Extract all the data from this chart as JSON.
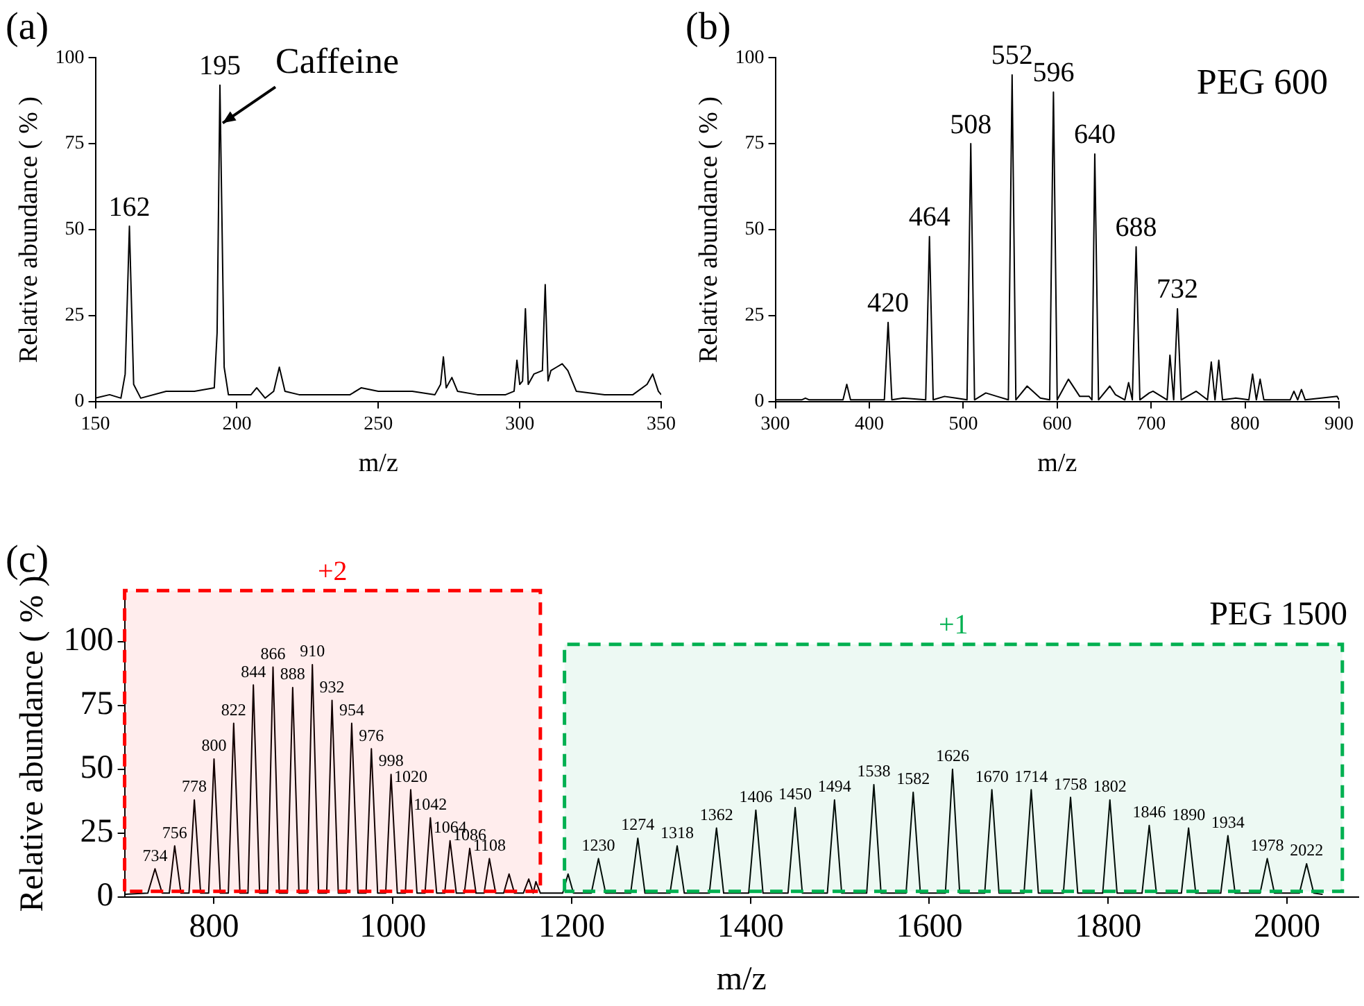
{
  "chart_data": [
    {
      "type": "line",
      "title": "(a)",
      "xlabel": "m/z",
      "ylabel": "Relative abundance ( % )",
      "color": "#000000",
      "x": [
        150,
        155,
        159,
        160.5,
        162,
        163.5,
        166,
        175,
        185,
        192,
        193,
        194,
        195.5,
        197,
        205,
        207,
        210,
        213,
        215,
        217,
        222,
        240,
        244,
        250,
        262,
        270,
        272,
        273,
        274,
        276,
        278,
        285,
        295,
        298,
        299,
        300,
        301,
        302,
        303,
        305,
        308,
        309,
        310,
        311,
        313,
        315,
        317,
        320,
        330,
        340,
        345,
        347,
        349,
        350
      ],
      "values": [
        1,
        2,
        1,
        8,
        51,
        5,
        1,
        3,
        3,
        4,
        20,
        92,
        10,
        2,
        2,
        4,
        1,
        3,
        10,
        3,
        2,
        2,
        4,
        3,
        3,
        2,
        5,
        13,
        4,
        7,
        3,
        2,
        2,
        3,
        12,
        5,
        6,
        27,
        5,
        8,
        9,
        34,
        6,
        9,
        10,
        11,
        9,
        3,
        2,
        2,
        5,
        8,
        3,
        2
      ],
      "xlim": [
        150,
        350
      ],
      "xticks": [
        150,
        200,
        250,
        300,
        350
      ],
      "ylim": [
        0,
        100
      ],
      "yticks": [
        0,
        25,
        50,
        75,
        100
      ],
      "annotations": [
        {
          "text": "162",
          "x": 162,
          "y": 51
        },
        {
          "text": "195",
          "x": 194,
          "y": 92
        },
        {
          "text": "Caffeine",
          "x": 194,
          "y": 81
        }
      ]
    },
    {
      "type": "line",
      "title": "(b)",
      "xlabel": "m/z",
      "ylabel": "Relative abundance ( % )",
      "color": "#000000",
      "x": [
        300,
        328,
        332,
        336,
        372,
        376,
        380,
        416,
        420,
        424,
        436,
        460,
        464,
        468,
        480,
        492,
        504,
        508,
        512,
        524,
        536,
        548,
        552,
        556,
        568,
        582,
        592,
        596,
        600,
        612,
        624,
        634,
        637,
        640,
        644,
        656,
        662,
        672,
        676,
        680,
        684,
        688,
        698,
        702,
        717,
        720,
        724,
        728,
        732,
        748,
        760,
        764,
        768,
        772,
        776,
        790,
        804,
        808,
        812,
        816,
        820,
        848,
        852,
        856,
        860,
        864,
        898,
        900
      ],
      "values": [
        0.5,
        0.5,
        1,
        0.5,
        0.5,
        5,
        0.5,
        0.5,
        23,
        0.5,
        1,
        0.5,
        48,
        0.5,
        1.5,
        1,
        0.5,
        75,
        0.5,
        2.5,
        1.5,
        0.5,
        95,
        0.5,
        4.5,
        1,
        0.5,
        90,
        0.5,
        6.5,
        1.5,
        1.5,
        0.5,
        72,
        0.5,
        4.5,
        2,
        0.5,
        5.5,
        0.5,
        45,
        0.5,
        2.5,
        3,
        0.5,
        13.5,
        0.5,
        27,
        0.5,
        3,
        0.5,
        11.5,
        0.5,
        12,
        0.5,
        1,
        0.5,
        8,
        0.5,
        6.5,
        0.5,
        0.5,
        3,
        0.5,
        3.5,
        0.5,
        1.5,
        0.5
      ],
      "xlim": [
        300,
        900
      ],
      "xticks": [
        300,
        400,
        500,
        600,
        700,
        800,
        900
      ],
      "ylim": [
        0,
        100
      ],
      "yticks": [
        0,
        25,
        50,
        75,
        100
      ],
      "annotations": [
        "PEG 600",
        {
          "text": "420",
          "x": 420,
          "y": 23
        },
        {
          "text": "464",
          "x": 464,
          "y": 48
        },
        {
          "text": "508",
          "x": 508,
          "y": 75
        },
        {
          "text": "552",
          "x": 552,
          "y": 95
        },
        {
          "text": "596",
          "x": 596,
          "y": 90
        },
        {
          "text": "640",
          "x": 640,
          "y": 72
        },
        {
          "text": "688",
          "x": 684,
          "y": 45
        },
        {
          "text": "732",
          "x": 728,
          "y": 27
        }
      ]
    },
    {
      "type": "line",
      "title": "(c)",
      "xlabel": "m/z",
      "ylabel": "Relative abundance ( % )",
      "color": "#000000",
      "x": [
        700,
        726,
        734,
        742,
        750,
        756,
        763,
        772,
        778,
        785,
        794,
        800,
        807,
        816,
        822,
        829,
        838,
        844,
        851,
        860,
        866,
        873,
        882,
        888,
        895,
        904,
        910,
        917,
        926,
        932,
        939,
        948,
        954,
        961,
        970,
        976,
        983,
        992,
        998,
        1005,
        1014,
        1020,
        1027,
        1036,
        1042,
        1049,
        1058,
        1064,
        1071,
        1080,
        1086,
        1093,
        1102,
        1108,
        1115,
        1124,
        1130,
        1136,
        1146,
        1152,
        1157,
        1160,
        1165,
        1190,
        1196,
        1202,
        1222,
        1230,
        1238,
        1266,
        1274,
        1282,
        1310,
        1318,
        1326,
        1354,
        1362,
        1370,
        1398,
        1406,
        1414,
        1442,
        1450,
        1458,
        1486,
        1494,
        1502,
        1530,
        1538,
        1546,
        1574,
        1582,
        1590,
        1618,
        1626,
        1634,
        1662,
        1670,
        1678,
        1706,
        1714,
        1722,
        1750,
        1758,
        1766,
        1794,
        1802,
        1810,
        1838,
        1846,
        1854,
        1882,
        1890,
        1898,
        1926,
        1934,
        1942,
        1970,
        1978,
        1986,
        2014,
        2022,
        2030,
        2040
      ],
      "values": [
        1,
        1.5,
        11,
        1.5,
        1.5,
        20,
        1.5,
        1.5,
        38,
        1.5,
        1.5,
        54,
        1.5,
        1.5,
        68,
        1.5,
        1.5,
        83,
        1.5,
        1.5,
        90,
        1.5,
        1.5,
        82,
        1.5,
        1.5,
        91,
        1.5,
        1.5,
        77,
        1.5,
        1.5,
        68,
        1.5,
        1.5,
        58,
        1.5,
        1.5,
        48,
        1.5,
        1.5,
        42,
        1.5,
        1.5,
        31,
        1.5,
        1.5,
        22,
        1.5,
        1.5,
        19,
        1.5,
        1.5,
        15,
        1.5,
        1.5,
        9,
        1.5,
        1.5,
        7,
        1.5,
        6,
        1.5,
        1.5,
        9,
        1.5,
        1.5,
        15,
        1.5,
        1.5,
        23,
        1.5,
        1.5,
        20,
        1.5,
        1.5,
        27,
        1.5,
        1.5,
        34,
        1.5,
        1.5,
        35,
        1.5,
        1.5,
        38,
        1.5,
        1.5,
        44,
        1.5,
        1.5,
        41,
        1.5,
        1.5,
        50,
        1.5,
        1.5,
        42,
        1.5,
        1.5,
        42,
        1.5,
        1.5,
        39,
        1.5,
        1.5,
        38,
        1.5,
        1.5,
        28,
        1.5,
        1.5,
        27,
        1.5,
        1.5,
        24,
        1.5,
        1.5,
        15,
        1.5,
        1.5,
        13,
        1.5,
        1
      ],
      "xlim": [
        700,
        2080
      ],
      "xticks": [
        800,
        1000,
        1200,
        1400,
        1600,
        1800,
        2000
      ],
      "ylim": [
        0,
        120
      ],
      "yticks": [
        0,
        25,
        50,
        75,
        100
      ],
      "bands": [
        {
          "axis": "x",
          "from": 700,
          "to": 1165,
          "label": "+2",
          "color": "#ff0000"
        },
        {
          "axis": "x",
          "from": 1192,
          "to": 2062,
          "label": "+1",
          "color": "#00b050"
        }
      ],
      "annotations": [
        "PEG 1500",
        {
          "text": "734",
          "x": 734,
          "y": 11
        },
        {
          "text": "756",
          "x": 756,
          "y": 20
        },
        {
          "text": "778",
          "x": 778,
          "y": 38
        },
        {
          "text": "800",
          "x": 800,
          "y": 54
        },
        {
          "text": "822",
          "x": 822,
          "y": 68
        },
        {
          "text": "844",
          "x": 844,
          "y": 83
        },
        {
          "text": "866",
          "x": 866,
          "y": 90
        },
        {
          "text": "888",
          "x": 888,
          "y": 82
        },
        {
          "text": "910",
          "x": 910,
          "y": 91
        },
        {
          "text": "932",
          "x": 932,
          "y": 77
        },
        {
          "text": "954",
          "x": 954,
          "y": 68
        },
        {
          "text": "976",
          "x": 976,
          "y": 58
        },
        {
          "text": "998",
          "x": 998,
          "y": 48
        },
        {
          "text": "1020",
          "x": 1020,
          "y": 42
        },
        {
          "text": "1042",
          "x": 1042,
          "y": 31
        },
        {
          "text": "1064",
          "x": 1064,
          "y": 22
        },
        {
          "text": "1086",
          "x": 1086,
          "y": 19
        },
        {
          "text": "1108",
          "x": 1108,
          "y": 15
        },
        {
          "text": "1230",
          "x": 1230,
          "y": 15
        },
        {
          "text": "1274",
          "x": 1274,
          "y": 23
        },
        {
          "text": "1318",
          "x": 1318,
          "y": 20
        },
        {
          "text": "1362",
          "x": 1362,
          "y": 27
        },
        {
          "text": "1406",
          "x": 1406,
          "y": 34
        },
        {
          "text": "1450",
          "x": 1450,
          "y": 35
        },
        {
          "text": "1494",
          "x": 1494,
          "y": 38
        },
        {
          "text": "1538",
          "x": 1538,
          "y": 44
        },
        {
          "text": "1582",
          "x": 1582,
          "y": 41
        },
        {
          "text": "1626",
          "x": 1626,
          "y": 50
        },
        {
          "text": "1670",
          "x": 1670,
          "y": 42
        },
        {
          "text": "1714",
          "x": 1714,
          "y": 42
        },
        {
          "text": "1758",
          "x": 1758,
          "y": 39
        },
        {
          "text": "1802",
          "x": 1802,
          "y": 38
        },
        {
          "text": "1846",
          "x": 1846,
          "y": 28
        },
        {
          "text": "1890",
          "x": 1890,
          "y": 27
        },
        {
          "text": "1934",
          "x": 1934,
          "y": 24
        },
        {
          "text": "1978",
          "x": 1978,
          "y": 15
        },
        {
          "text": "2022",
          "x": 2022,
          "y": 13
        }
      ]
    }
  ]
}
